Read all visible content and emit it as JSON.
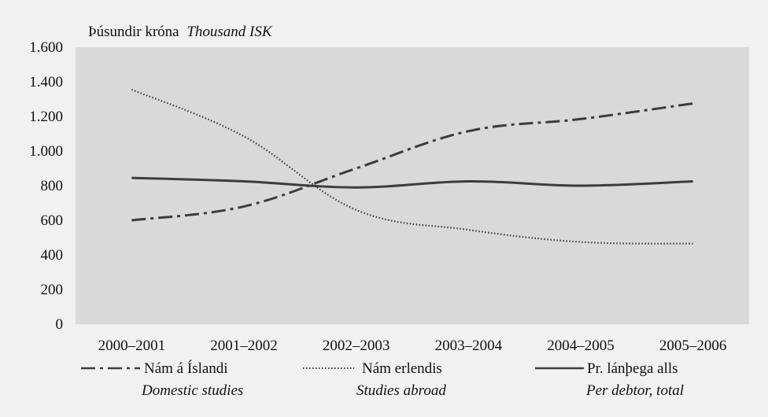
{
  "chart_data": {
    "type": "line",
    "unit_label": {
      "is": "Þúsundir króna",
      "en": "Thousand ISK"
    },
    "categories": [
      "2000–2001",
      "2001–2002",
      "2002–2003",
      "2003–2004",
      "2004–2005",
      "2005–2006"
    ],
    "ylim": [
      0,
      1600
    ],
    "yticks": [
      0,
      200,
      400,
      600,
      800,
      1000,
      1200,
      1400,
      1600
    ],
    "ytick_labels": [
      "0",
      "200",
      "400",
      "600",
      "800",
      "1.000",
      "1.200",
      "1.400",
      "1.600"
    ],
    "grid": false,
    "legend_position": "bottom",
    "series": [
      {
        "name": "Nám á Íslandi",
        "name_en": "Domestic studies",
        "style": "dashdot",
        "color": "#3c3c3c",
        "values": [
          600,
          680,
          900,
          1115,
          1185,
          1275
        ]
      },
      {
        "name": "Nám erlendis",
        "name_en": "Studies abroad",
        "style": "dotted",
        "color": "#3c3c3c",
        "values": [
          1355,
          1085,
          660,
          545,
          475,
          465
        ]
      },
      {
        "name": "Pr. lánþega alls",
        "name_en": "Per debtor, total",
        "style": "solid",
        "color": "#3c3c3c",
        "values": [
          845,
          825,
          790,
          825,
          800,
          825
        ]
      }
    ]
  },
  "colors": {
    "background": "#f1f1f1",
    "plot_area": "#d9d9d9",
    "line": "#3c3c3c"
  }
}
